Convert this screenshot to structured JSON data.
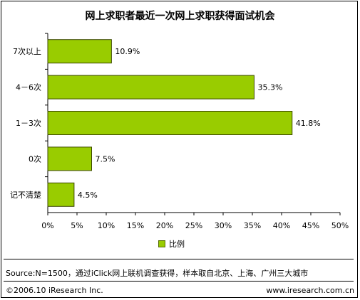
{
  "chart_data": {
    "type": "bar",
    "orientation": "horizontal",
    "title": "网上求职者最近一次网上求职获得面试机会",
    "categories": [
      "7次以上",
      "4－6次",
      "1－3次",
      "0次",
      "记不清楚"
    ],
    "values": [
      10.9,
      35.3,
      41.8,
      7.5,
      4.5
    ],
    "value_labels": [
      "10.9%",
      "35.3%",
      "41.8%",
      "7.5%",
      "4.5%"
    ],
    "x_ticks": [
      "0%",
      "5%",
      "10%",
      "15%",
      "20%",
      "25%",
      "30%",
      "35%",
      "40%",
      "45%",
      "50%"
    ],
    "xlim": [
      0,
      50
    ],
    "series": [
      {
        "name": "比例",
        "values": [
          10.9,
          35.3,
          41.8,
          7.5,
          4.5
        ]
      }
    ],
    "legend_position": "bottom",
    "grid": false,
    "bar_color": "#99cc00"
  },
  "source": "Source:N=1500，通过iClick网上联机调查获得，样本取自北京、上海、广州三大城市",
  "copyright": "©2006.10 iResearch Inc.",
  "website": "www.iresearch.com.cn"
}
